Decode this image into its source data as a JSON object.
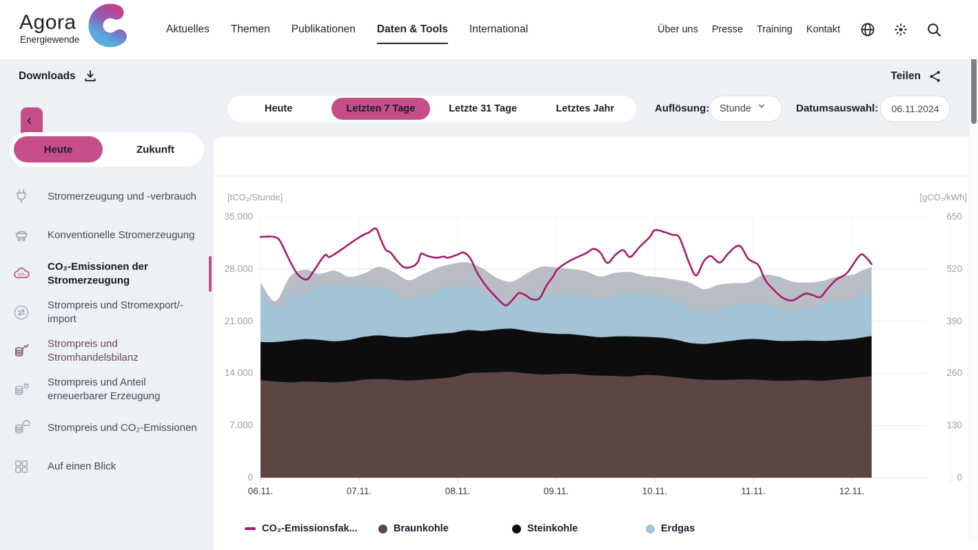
{
  "colors": {
    "accent": "#c54e89",
    "page_bg": "#edf0f4",
    "line_magenta": "#a81a6b",
    "area_braunkohle": "#5c4643",
    "area_steinkohle": "#0d0d0d",
    "area_erdgas": "#a3c3d6",
    "area_gray": "#b9bdc5"
  },
  "header": {
    "logo": {
      "title": "Agora",
      "subtitle": "Energiewende"
    },
    "nav": [
      {
        "label": "Aktuelles",
        "active": false
      },
      {
        "label": "Themen",
        "active": false
      },
      {
        "label": "Publikationen",
        "active": false
      },
      {
        "label": "Daten & Tools",
        "active": true
      },
      {
        "label": "International",
        "active": false
      }
    ],
    "secondary_nav": [
      "Über uns",
      "Presse",
      "Training",
      "Kontakt"
    ],
    "icon_buttons": [
      "globe-icon",
      "brightness-icon",
      "search-icon"
    ]
  },
  "toolbar": {
    "downloads_label": "Downloads",
    "share_label": "Teilen"
  },
  "controls": {
    "range_tabs": [
      {
        "label": "Heute",
        "active": false
      },
      {
        "label": "Letzten 7 Tage",
        "active": true
      },
      {
        "label": "Letzte 31 Tage",
        "active": false
      },
      {
        "label": "Letztes Jahr",
        "active": false
      }
    ],
    "resolution": {
      "label": "Auflösung:",
      "value": "Stunde"
    },
    "date": {
      "label": "Datumsauswahl:",
      "value": "06.11.2024"
    }
  },
  "sidebar": {
    "view_toggle": [
      {
        "label": "Heute",
        "active": true
      },
      {
        "label": "Zukunft",
        "active": false
      }
    ],
    "items": [
      {
        "label": "Stromerzeugung und -verbrauch",
        "icon": "plug-icon",
        "active": false,
        "highlight": false
      },
      {
        "label": "Konventionelle Stromerzeugung",
        "icon": "cart-icon",
        "active": false,
        "highlight": false
      },
      {
        "label": "CO₂-Emissionen der Stromerzeugung",
        "icon": "co2-cloud-icon",
        "active": true,
        "highlight": false
      },
      {
        "label": "Strompreis und Stromexport/-import",
        "icon": "exchange-icon",
        "active": false,
        "highlight": false
      },
      {
        "label": "Strompreis und Stromhandelsbilanz",
        "icon": "coins-chart-icon",
        "active": false,
        "highlight": true
      },
      {
        "label": "Strompreis und Anteil erneuerbarer Erzeugung",
        "icon": "coins-plug-icon",
        "active": false,
        "highlight": false
      },
      {
        "label": "Strompreis und CO₂-Emissionen",
        "icon": "coins-cloud-icon",
        "active": false,
        "highlight": false
      },
      {
        "label": "Auf einen Blick",
        "icon": "grid-icon",
        "active": false,
        "highlight": false
      }
    ]
  },
  "chart": {
    "title": "CO₂-Emissionen der Stromerzeugung",
    "left_unit": "[tCO₂/Stunde]",
    "right_unit": "[gCO₂/kWh]"
  },
  "chart_data": {
    "type": "area",
    "title": "CO₂-Emissionen der Stromerzeugung",
    "left_axis": {
      "label": "[tCO₂/Stunde]",
      "range": [
        0,
        35000
      ],
      "tick_labels": [
        "0",
        "7.000",
        "14.000",
        "21.000",
        "28.000",
        "35.000"
      ]
    },
    "right_axis": {
      "label": "[gCO₂/kWh]",
      "range": [
        0,
        650
      ],
      "tick_labels": [
        "0",
        "130",
        "260",
        "390",
        "520",
        "650"
      ]
    },
    "x_labels": [
      "06.11.",
      "07.11.",
      "08.11.",
      "09.11.",
      "10.11.",
      "11.11.",
      "12.11."
    ],
    "x_range_days": [
      0,
      7.17
    ],
    "data_end_day": 6.2,
    "grid": true,
    "legend_position": "bottom",
    "legend": [
      {
        "label": "CO₂-Emissionsfak...",
        "swatch": "line",
        "color": "#a81a6b"
      },
      {
        "label": "Braunkohle",
        "swatch": "dot",
        "color": "#5c4643"
      },
      {
        "label": "Steinkohle",
        "swatch": "dot",
        "color": "#0d0d0d"
      },
      {
        "label": "Erdgas",
        "swatch": "dot",
        "color": "#a3c3d6"
      }
    ],
    "areas_t": [
      0,
      0.15,
      0.3,
      0.45,
      0.6,
      0.75,
      0.9,
      1.05,
      1.2,
      1.35,
      1.5,
      1.65,
      1.8,
      1.95,
      2.1,
      2.25,
      2.4,
      2.55,
      2.7,
      2.85,
      3.0,
      3.15,
      3.3,
      3.45,
      3.6,
      3.75,
      3.9,
      4.05,
      4.2,
      4.35,
      4.5,
      4.65,
      4.8,
      4.95,
      5.1,
      5.25,
      5.4,
      5.55,
      5.7,
      5.85,
      6.0,
      6.1,
      6.2
    ],
    "areas": [
      {
        "name": "Braunkohle",
        "color": "#5c4643",
        "values": [
          13100,
          12900,
          12800,
          12900,
          12850,
          12800,
          12900,
          13150,
          13250,
          13150,
          13050,
          13150,
          13300,
          13500,
          14000,
          14100,
          14150,
          14200,
          14000,
          13850,
          13900,
          13950,
          13800,
          13700,
          13650,
          13600,
          13800,
          13700,
          13500,
          13300,
          13150,
          13100,
          13150,
          13200,
          13100,
          13000,
          13050,
          13100,
          13000,
          13200,
          13350,
          13500,
          13600
        ]
      },
      {
        "name": "Steinkohle",
        "color": "#0d0d0d",
        "values": [
          5100,
          5300,
          5600,
          5700,
          5650,
          5500,
          5600,
          5750,
          5850,
          5750,
          5800,
          5950,
          6000,
          5950,
          5800,
          5600,
          5750,
          5800,
          5700,
          5600,
          5400,
          5300,
          5250,
          5150,
          5300,
          5350,
          5100,
          5100,
          5050,
          4800,
          4800,
          5050,
          5250,
          5400,
          5450,
          5350,
          5300,
          5300,
          5350,
          5250,
          5250,
          5300,
          5400
        ]
      },
      {
        "name": "Erdgas",
        "color": "#a3c3d6",
        "values": [
          6900,
          4700,
          6000,
          6400,
          7100,
          7700,
          7300,
          6800,
          6350,
          5900,
          5050,
          5400,
          6000,
          6150,
          5900,
          5300,
          4050,
          3400,
          4500,
          5050,
          5100,
          5350,
          5450,
          5150,
          5350,
          5850,
          5700,
          5600,
          5250,
          4700,
          4150,
          4450,
          4700,
          4800,
          4750,
          4450,
          4150,
          4300,
          4850,
          5250,
          5300,
          5800,
          6300
        ]
      },
      {
        "name": "(unbeschriftete graue Fläche)",
        "color": "#b9bdc5",
        "values": [
          1100,
          800,
          2600,
          2900,
          1750,
          1800,
          1150,
          1700,
          2850,
          2800,
          2600,
          2800,
          2900,
          3100,
          3200,
          3100,
          2850,
          2900,
          3200,
          3800,
          3800,
          3400,
          3200,
          3000,
          3200,
          2800,
          2500,
          2500,
          2800,
          3400,
          3200,
          3300,
          3000,
          2800,
          3900,
          4200,
          3800,
          3500,
          3200,
          3300,
          3300,
          3200,
          3000
        ]
      }
    ],
    "line": {
      "name": "CO₂-Emissionsfak...",
      "color": "#a81a6b",
      "axis": "right",
      "t": [
        0,
        0.1,
        0.15,
        0.2,
        0.3,
        0.38,
        0.47,
        0.54,
        0.65,
        0.7,
        0.8,
        0.9,
        0.97,
        1.05,
        1.1,
        1.17,
        1.22,
        1.27,
        1.32,
        1.39,
        1.46,
        1.55,
        1.6,
        1.63,
        1.69,
        1.78,
        1.86,
        1.9,
        2.0,
        2.06,
        2.13,
        2.2,
        2.3,
        2.37,
        2.45,
        2.5,
        2.57,
        2.62,
        2.68,
        2.75,
        2.83,
        2.9,
        2.97,
        3.02,
        3.15,
        3.3,
        3.38,
        3.45,
        3.52,
        3.6,
        3.68,
        3.75,
        3.85,
        3.95,
        4.0,
        4.1,
        4.18,
        4.25,
        4.35,
        4.42,
        4.5,
        4.57,
        4.66,
        4.75,
        4.86,
        4.95,
        5.05,
        5.12,
        5.2,
        5.3,
        5.4,
        5.52,
        5.59,
        5.68,
        5.75,
        5.84,
        5.95,
        6.08,
        6.14,
        6.2
      ],
      "values": [
        600,
        601,
        599,
        589,
        539,
        506,
        494,
        515,
        554,
        550,
        565,
        582,
        594,
        606,
        611,
        621,
        594,
        568,
        561,
        539,
        524,
        527,
        539,
        558,
        553,
        548,
        551,
        548,
        556,
        561,
        546,
        510,
        474,
        455,
        435,
        430,
        447,
        460,
        456,
        445,
        447,
        478,
        502,
        521,
        542,
        559,
        570,
        560,
        535,
        555,
        567,
        550,
        576,
        600,
        617,
        612,
        605,
        598,
        535,
        504,
        540,
        552,
        536,
        560,
        578,
        545,
        530,
        493,
        470,
        448,
        442,
        458,
        456,
        450,
        470,
        493,
        510,
        554,
        550,
        532
      ]
    }
  }
}
